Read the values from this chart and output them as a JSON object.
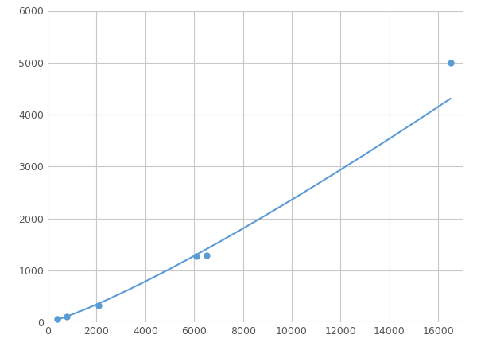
{
  "x_data": [
    390,
    780,
    2100,
    6100,
    6500,
    16500
  ],
  "y_data": [
    55,
    105,
    320,
    1270,
    1290,
    5000
  ],
  "line_color": "#5b9bd5",
  "marker_color": "#5b9bd5",
  "marker_size": 6,
  "line_width": 1.5,
  "xlim": [
    0,
    17000
  ],
  "ylim": [
    0,
    6000
  ],
  "xticks": [
    0,
    2000,
    4000,
    6000,
    8000,
    10000,
    12000,
    14000,
    16000
  ],
  "yticks": [
    0,
    1000,
    2000,
    3000,
    4000,
    5000,
    6000
  ],
  "grid_color": "#c8c8c8",
  "background_color": "#ffffff",
  "fig_background_color": "#ffffff"
}
